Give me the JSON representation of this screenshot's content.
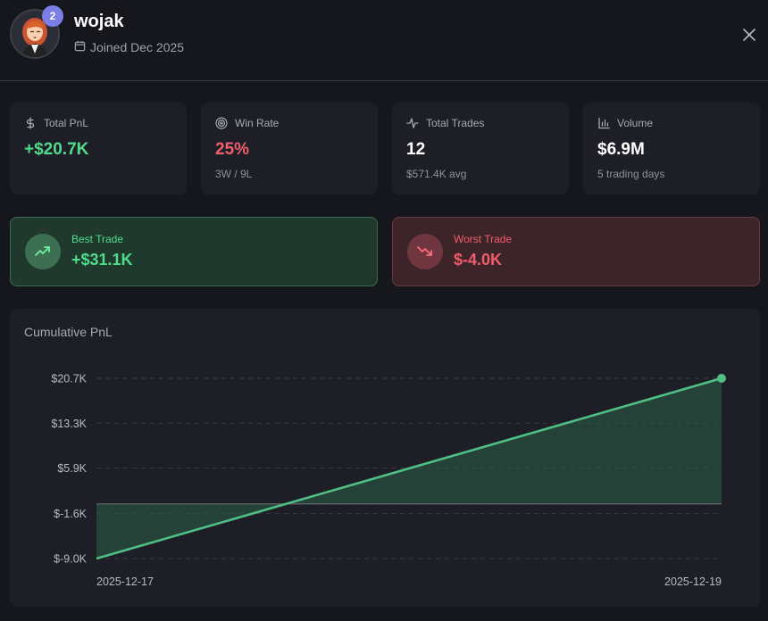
{
  "profile": {
    "username": "wojak",
    "rank_badge": "2",
    "joined": "Joined Dec 2025"
  },
  "stats": [
    {
      "label": "Total PnL",
      "value": "+$20.7K",
      "sub": "",
      "icon": "dollar-icon",
      "tone": "green"
    },
    {
      "label": "Win Rate",
      "value": "25%",
      "sub": "3W / 9L",
      "icon": "target-icon",
      "tone": "red"
    },
    {
      "label": "Total Trades",
      "value": "12",
      "sub": "$571.4K avg",
      "icon": "activity-icon",
      "tone": "white"
    },
    {
      "label": "Volume",
      "value": "$6.9M",
      "sub": "5 trading days",
      "icon": "bar-chart-icon",
      "tone": "white"
    }
  ],
  "best_trade": {
    "label": "Best Trade",
    "value": "+$31.1K"
  },
  "worst_trade": {
    "label": "Worst Trade",
    "value": "$-4.0K"
  },
  "colors": {
    "positive": "#4fdc8c",
    "negative": "#f05d6c",
    "line": "#4fbf85",
    "badge": "#7b7ee6"
  },
  "chart_data": {
    "type": "area",
    "title": "Cumulative PnL",
    "x": [
      "2025-12-17",
      "2025-12-19"
    ],
    "series": [
      {
        "name": "Cumulative PnL",
        "values": [
          -9.0,
          20.7
        ]
      }
    ],
    "baseline": 0,
    "ylim": [
      -9.0,
      20.7
    ],
    "yticks": [
      20.7,
      13.3,
      5.9,
      -1.6,
      -9.0
    ],
    "ytick_labels": [
      "$20.7K",
      "$13.3K",
      "$5.9K",
      "$-1.6K",
      "$-9.0K"
    ],
    "xtick_labels": [
      "2025-12-17",
      "2025-12-19"
    ],
    "grid": true,
    "unit": "$K"
  }
}
